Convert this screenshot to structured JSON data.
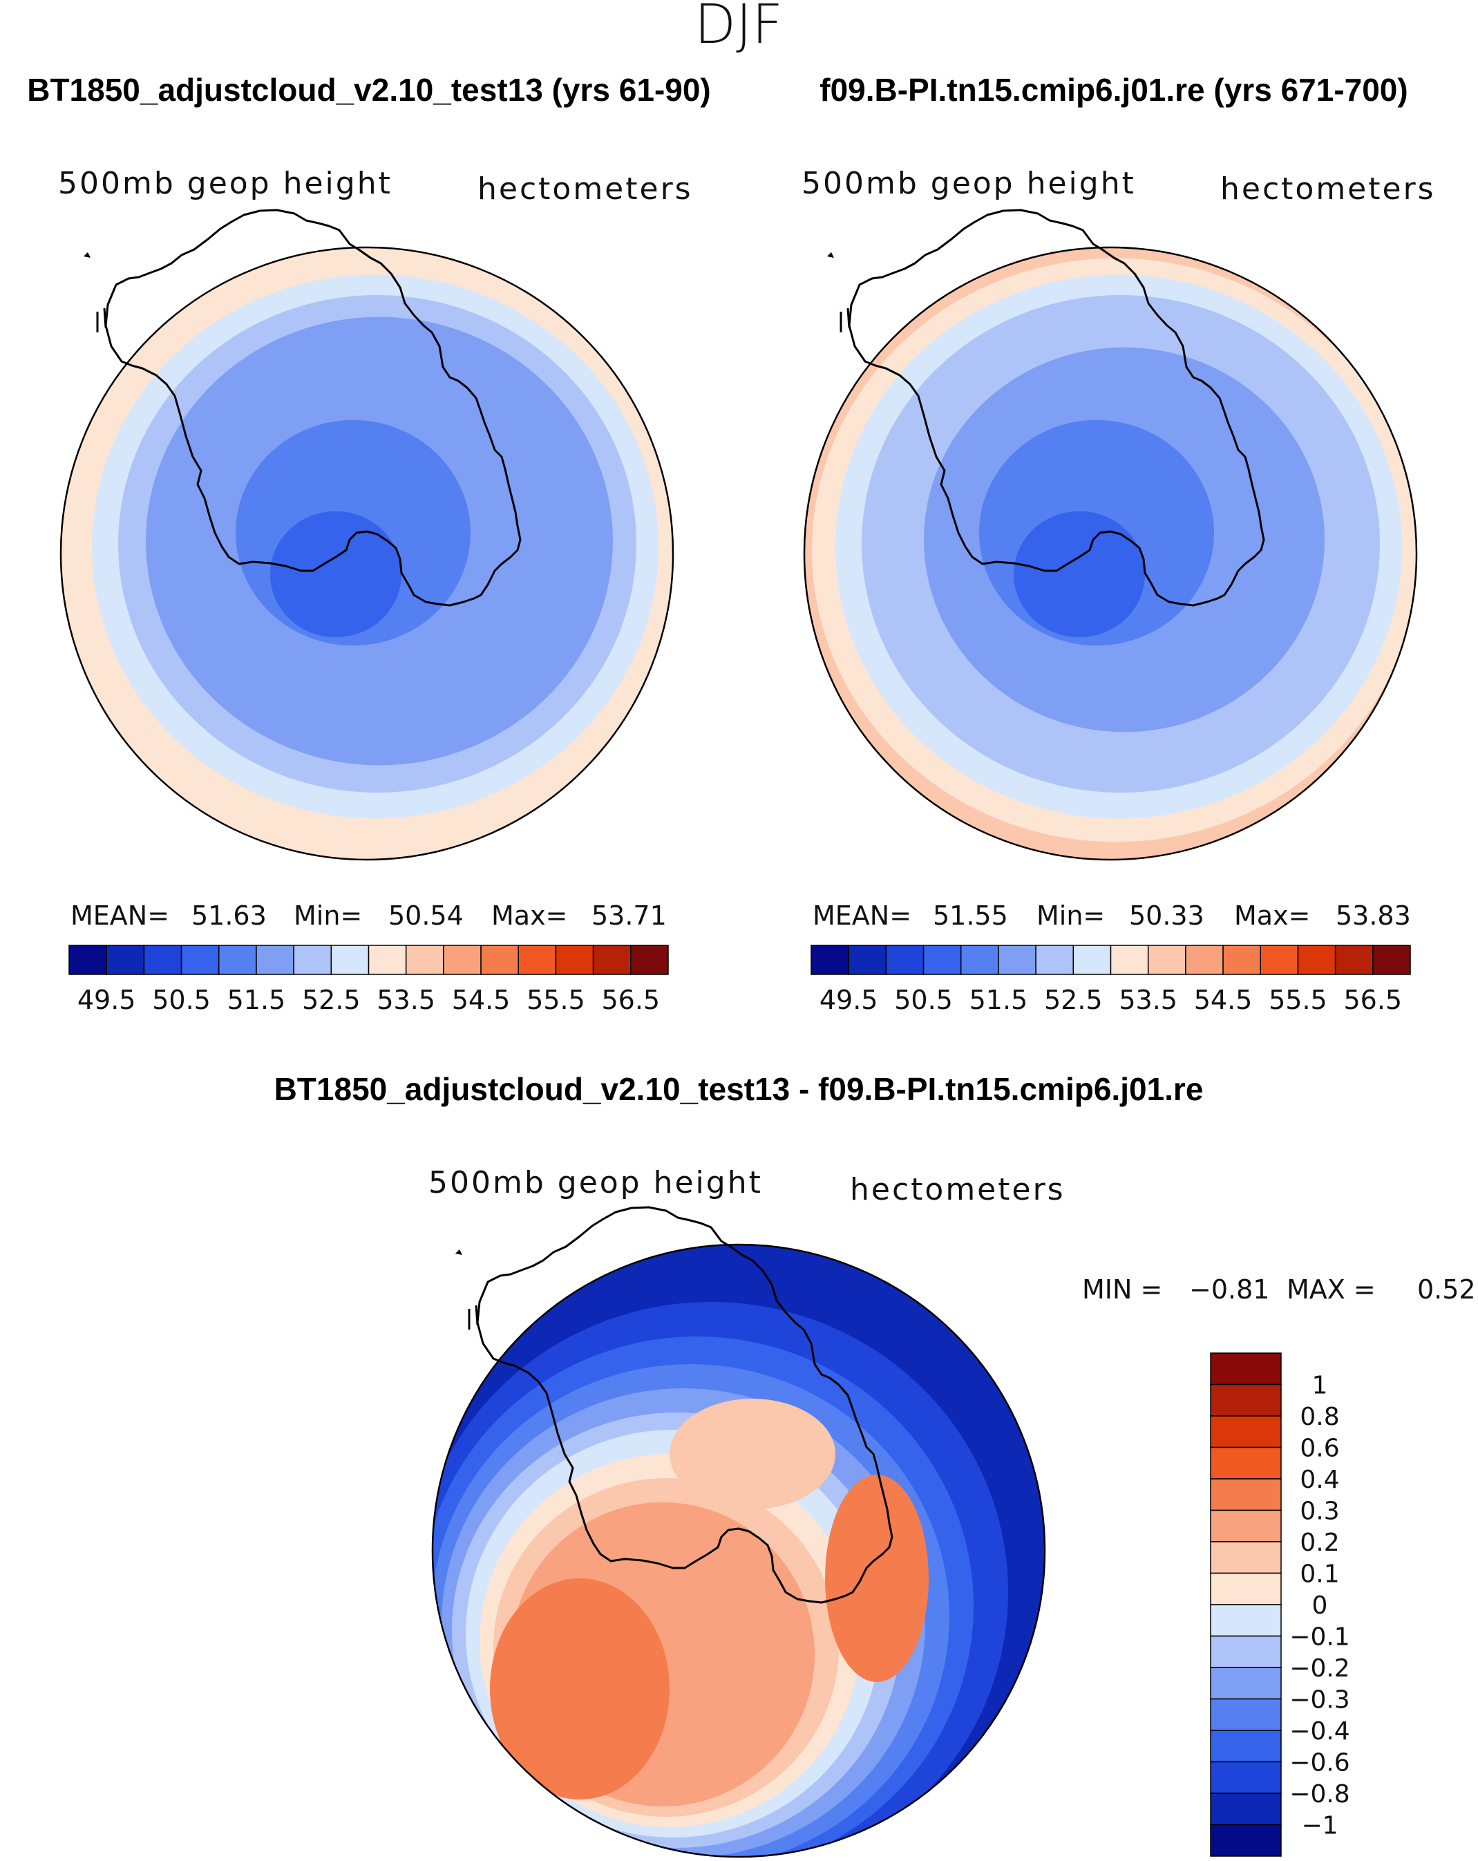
{
  "page_title": "DJF",
  "chart_data": [
    {
      "type": "heatmap",
      "projection": "south-polar-stereographic",
      "title": "BT1850_adjustcloud_v2.10_test13 (yrs 61-90)",
      "left_label": "500mb geop height",
      "right_label": "hectometers",
      "stats": {
        "mean_label": "MEAN=",
        "mean": "51.63",
        "min_label": "Min=",
        "min": "50.54",
        "max_label": "Max=",
        "max": "53.71"
      },
      "colorbar_ticks": [
        "49.5",
        "50.5",
        "51.5",
        "52.5",
        "53.5",
        "54.5",
        "55.5",
        "56.5"
      ],
      "field_levels": [
        53.4,
        53.1,
        52.7,
        52.3,
        51.9,
        51.5,
        51.0,
        50.6
      ],
      "min_value": 50.54,
      "max_value": 53.71
    },
    {
      "type": "heatmap",
      "projection": "south-polar-stereographic",
      "title": "f09.B-PI.tn15.cmip6.j01.re (yrs 671-700)",
      "left_label": "500mb geop height",
      "right_label": "hectometers",
      "stats": {
        "mean_label": "MEAN=",
        "mean": "51.55",
        "min_label": "Min=",
        "min": "50.33",
        "max_label": "Max=",
        "max": "53.83"
      },
      "colorbar_ticks": [
        "49.5",
        "50.5",
        "51.5",
        "52.5",
        "53.5",
        "54.5",
        "55.5",
        "56.5"
      ],
      "field_levels": [
        53.6,
        53.2,
        52.8,
        52.4,
        52.0,
        51.5,
        51.0,
        50.5
      ],
      "min_value": 50.33,
      "max_value": 53.83
    },
    {
      "type": "heatmap",
      "projection": "south-polar-stereographic",
      "title": "BT1850_adjustcloud_v2.10_test13 - f09.B-PI.tn15.cmip6.j01.re",
      "left_label": "500mb geop height",
      "right_label": "hectometers",
      "stats": {
        "min_label": "MIN =",
        "min": "−0.81",
        "max_label": "MAX =",
        "max": "0.52"
      },
      "colorbar_ticks": [
        "1",
        "0.8",
        "0.6",
        "0.4",
        "0.3",
        "0.2",
        "0.1",
        "0",
        "−0.1",
        "−0.2",
        "−0.3",
        "−0.4",
        "−0.6",
        "−0.8",
        "−1"
      ],
      "min_value": -0.81,
      "max_value": 0.52
    }
  ],
  "colors": {
    "abs_palette": [
      "#050a8a",
      "#0d28b4",
      "#1f44da",
      "#3563ec",
      "#5480f2",
      "#7f9ff5",
      "#aec4f8",
      "#d6e6fb",
      "#fde5d4",
      "#fbc7ad",
      "#f8a27f",
      "#f57c4c",
      "#f05a22",
      "#dc3708",
      "#b62208",
      "#7d0a0a"
    ],
    "diff_palette": [
      "#8a0909",
      "#b3200a",
      "#dc3708",
      "#f05a22",
      "#f57c4c",
      "#f8a27f",
      "#fbc7ad",
      "#fde5d4",
      "#d6e6fb",
      "#aec4f8",
      "#7f9ff5",
      "#5480f2",
      "#3563ec",
      "#1f44da",
      "#0d28b4",
      "#050a8a"
    ],
    "coast": "#000000"
  }
}
